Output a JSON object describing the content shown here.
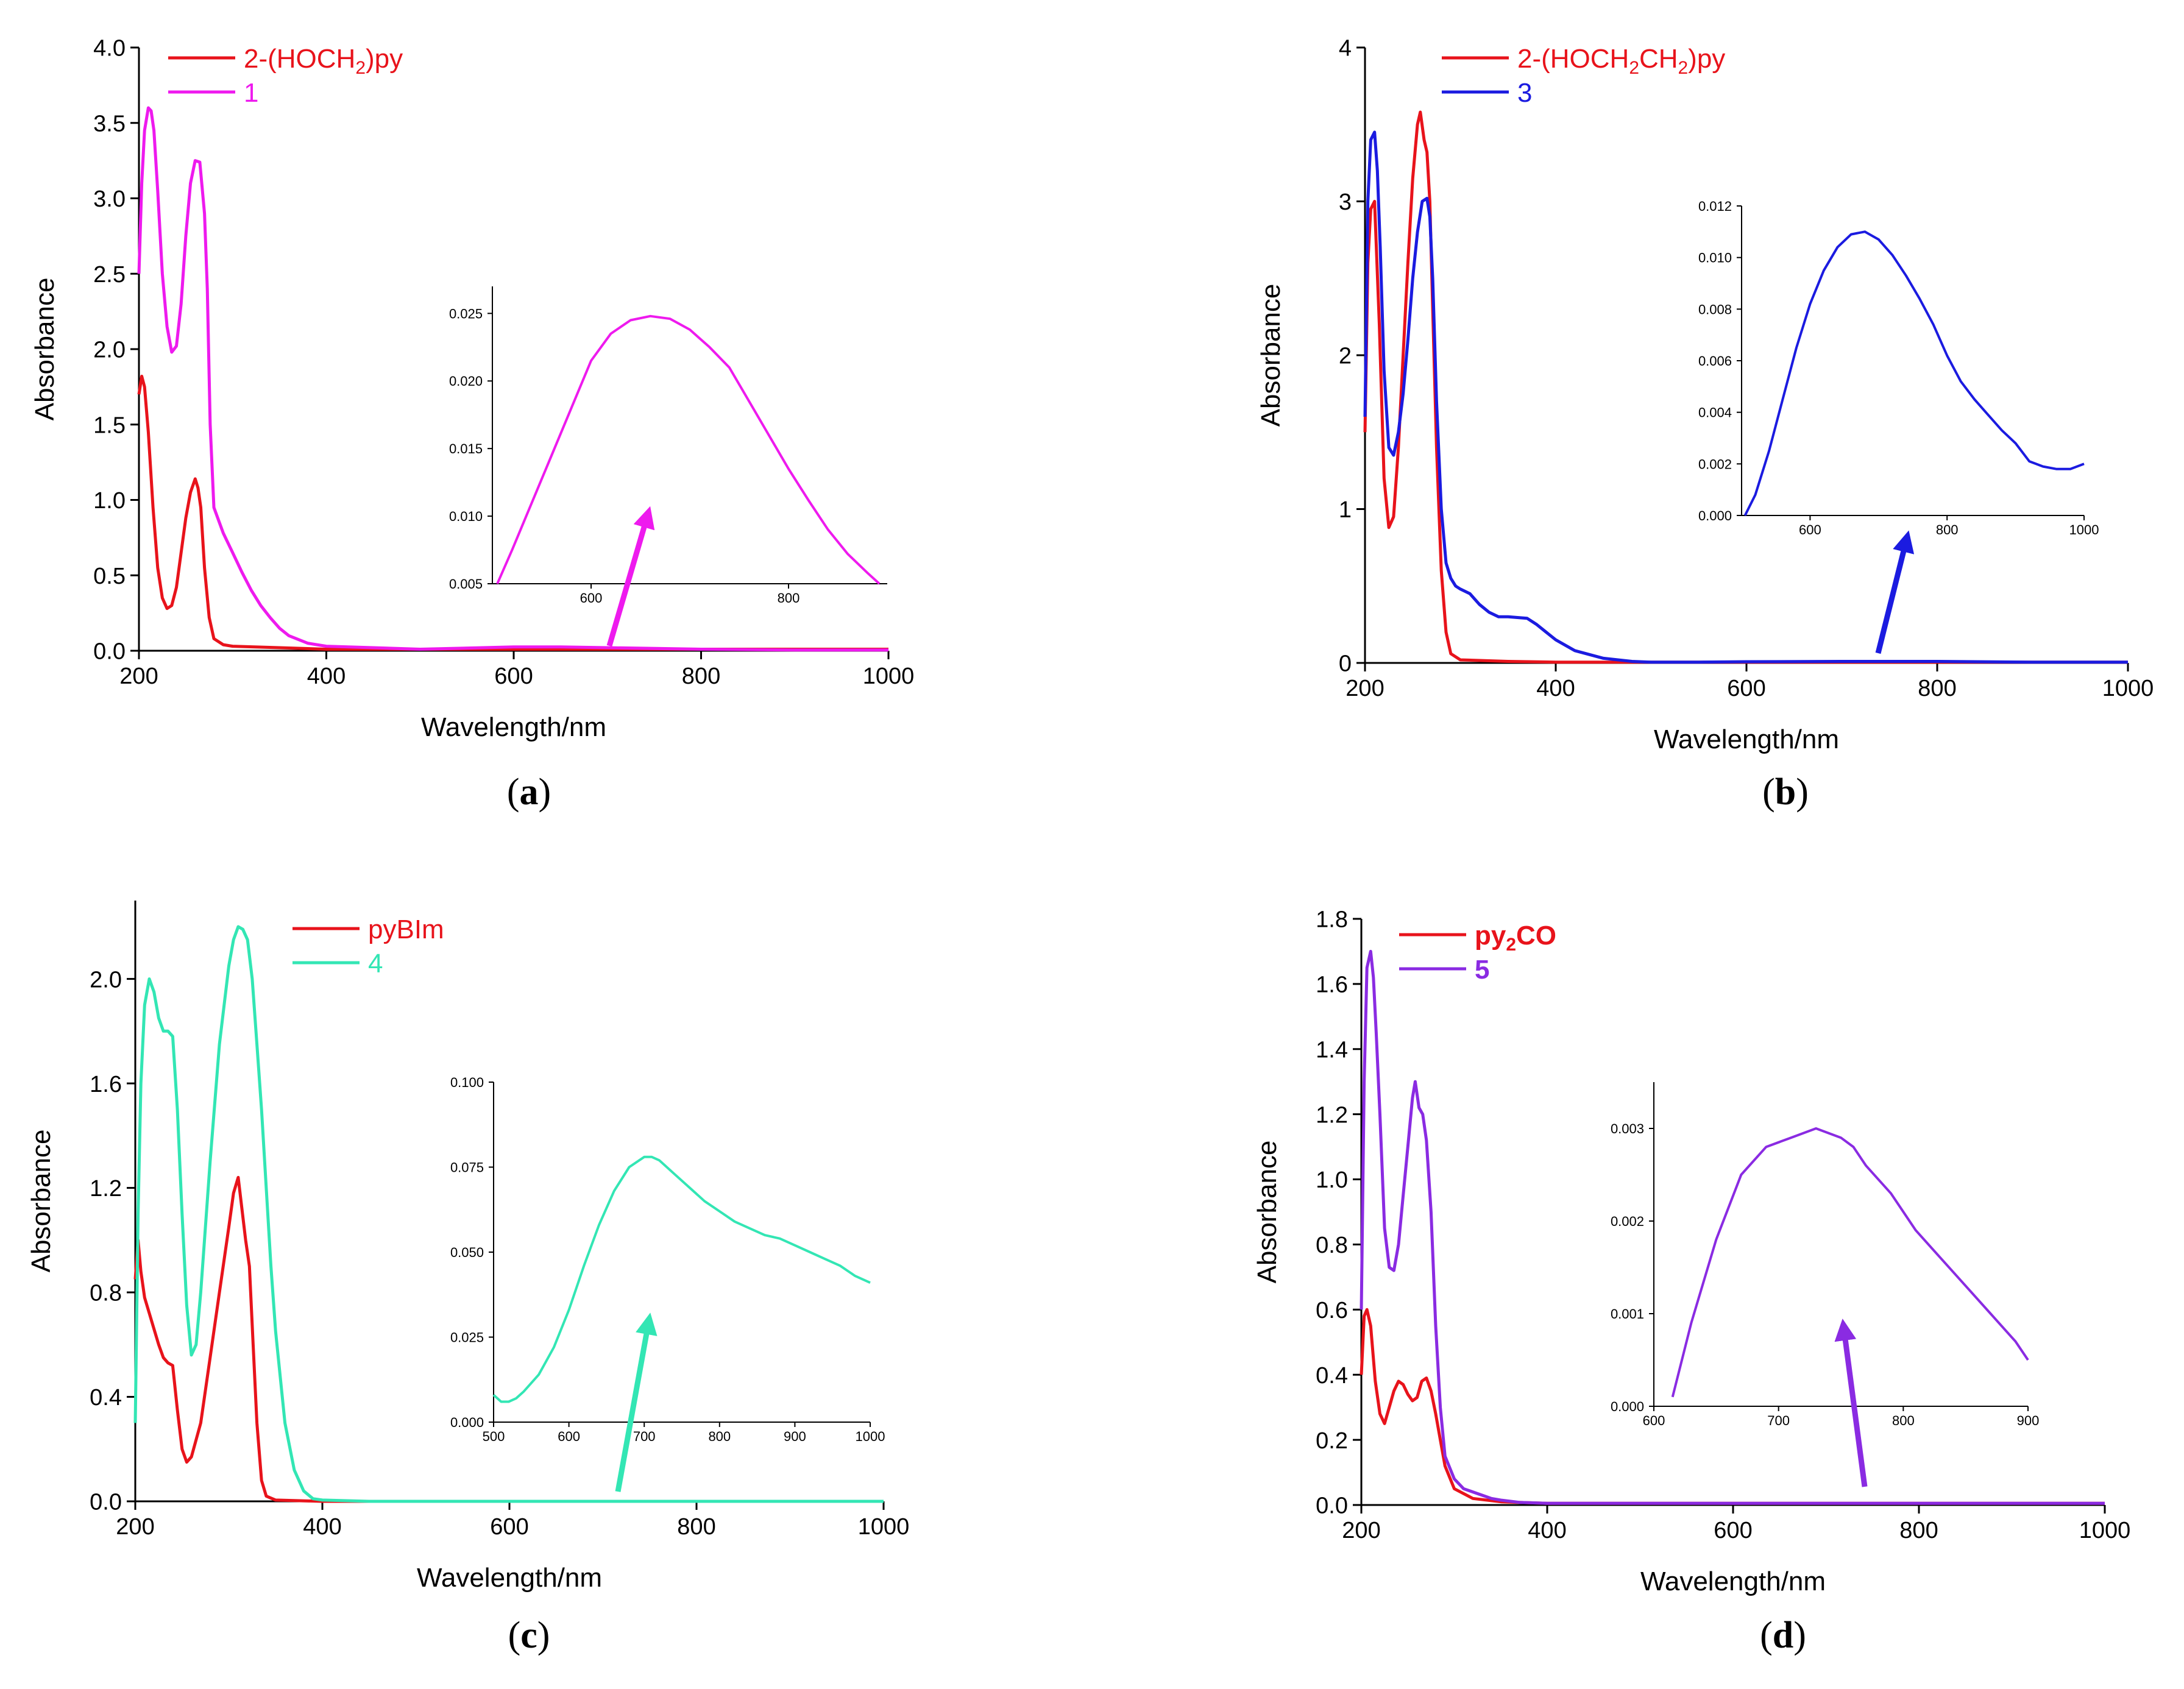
{
  "chart_data": [
    {
      "id": "a",
      "type": "line",
      "panel_label": "a",
      "xlabel": "Wavelength/nm",
      "ylabel": "Absorbance",
      "xlim": [
        200,
        1000
      ],
      "ylim": [
        0,
        4.0
      ],
      "xticks": [
        200,
        400,
        600,
        800,
        1000
      ],
      "yticks": [
        0.0,
        0.5,
        1.0,
        1.5,
        2.0,
        2.5,
        3.0,
        3.5,
        4.0
      ],
      "ytick_decimals": 1,
      "legend": [
        {
          "pre": "2-(HOCH",
          "sub": "2",
          "post": ")py",
          "color": "#e8131b",
          "bold": false
        },
        {
          "pre": "1",
          "sub": "",
          "post": "",
          "color": "#ee1aee",
          "bold": false
        }
      ],
      "series": [
        {
          "color": "#e8131b",
          "x": [
            200,
            203,
            206,
            210,
            215,
            220,
            225,
            230,
            235,
            240,
            245,
            250,
            255,
            260,
            263,
            266,
            270,
            275,
            280,
            290,
            300,
            350,
            400,
            500,
            600,
            700,
            800,
            1000
          ],
          "y": [
            1.7,
            1.82,
            1.75,
            1.45,
            0.95,
            0.55,
            0.35,
            0.28,
            0.3,
            0.42,
            0.65,
            0.88,
            1.05,
            1.14,
            1.08,
            0.95,
            0.55,
            0.22,
            0.08,
            0.04,
            0.03,
            0.02,
            0.01,
            0.01,
            0.01,
            0.01,
            0.01,
            0.01
          ]
        },
        {
          "color": "#ee1aee",
          "x": [
            200,
            203,
            206,
            210,
            213,
            216,
            220,
            225,
            230,
            235,
            240,
            245,
            250,
            255,
            260,
            265,
            270,
            273,
            276,
            280,
            290,
            300,
            310,
            320,
            330,
            340,
            350,
            360,
            380,
            400,
            450,
            500,
            600,
            650,
            700,
            800,
            900,
            1000
          ],
          "y": [
            2.5,
            3.1,
            3.45,
            3.6,
            3.58,
            3.45,
            3.05,
            2.5,
            2.15,
            1.98,
            2.02,
            2.3,
            2.75,
            3.1,
            3.25,
            3.24,
            2.9,
            2.4,
            1.5,
            0.95,
            0.78,
            0.65,
            0.52,
            0.4,
            0.3,
            0.22,
            0.15,
            0.1,
            0.05,
            0.03,
            0.02,
            0.01,
            0.025,
            0.025,
            0.02,
            0.01,
            0.005,
            0.005
          ]
        }
      ],
      "inset": {
        "xlim": [
          500,
          900
        ],
        "ylim": [
          0.005,
          0.027
        ],
        "xticks": [
          600,
          800
        ],
        "yticks": [
          0.005,
          0.01,
          0.015,
          0.02,
          0.025
        ],
        "ytick_decimals": 3,
        "color": "#ee1aee",
        "x": [
          505,
          520,
          540,
          560,
          580,
          600,
          620,
          640,
          660,
          680,
          700,
          720,
          740,
          760,
          780,
          800,
          820,
          840,
          860,
          880,
          892
        ],
        "y": [
          0.005,
          0.0075,
          0.011,
          0.0145,
          0.018,
          0.0215,
          0.0235,
          0.0245,
          0.0248,
          0.0246,
          0.0238,
          0.0225,
          0.021,
          0.0185,
          0.016,
          0.0135,
          0.0112,
          0.009,
          0.0072,
          0.0058,
          0.005
        ]
      }
    },
    {
      "id": "b",
      "type": "line",
      "panel_label": "b",
      "xlabel": "Wavelength/nm",
      "ylabel": "Absorbance",
      "xlim": [
        200,
        1000
      ],
      "ylim": [
        0,
        4
      ],
      "xticks": [
        200,
        400,
        600,
        800,
        1000
      ],
      "yticks": [
        0,
        1,
        2,
        3,
        4
      ],
      "ytick_decimals": 0,
      "legend": [
        {
          "pre": "2-(HOCH",
          "sub": "2",
          "post": "CH",
          "sub2": "2",
          "post2": ")py",
          "color": "#e8131b",
          "bold": false
        },
        {
          "pre": "3",
          "sub": "",
          "post": "",
          "color": "#1b1be0",
          "bold": false
        }
      ],
      "series": [
        {
          "color": "#e8131b",
          "x": [
            200,
            203,
            206,
            210,
            215,
            220,
            225,
            230,
            235,
            240,
            245,
            250,
            255,
            258,
            262,
            265,
            268,
            271,
            275,
            280,
            285,
            290,
            300,
            350,
            400,
            600,
            800,
            1000
          ],
          "y": [
            1.5,
            2.6,
            2.95,
            3.0,
            2.2,
            1.2,
            0.88,
            0.95,
            1.4,
            2.0,
            2.6,
            3.15,
            3.5,
            3.58,
            3.4,
            3.32,
            3.0,
            2.3,
            1.4,
            0.6,
            0.2,
            0.06,
            0.02,
            0.01,
            0.005,
            0.005,
            0.005,
            0.005
          ]
        },
        {
          "color": "#1b1be0",
          "x": [
            200,
            203,
            206,
            210,
            213,
            216,
            220,
            225,
            230,
            235,
            240,
            245,
            250,
            255,
            260,
            265,
            268,
            271,
            275,
            280,
            285,
            290,
            295,
            300,
            310,
            320,
            330,
            340,
            350,
            370,
            380,
            390,
            400,
            420,
            450,
            480,
            500,
            550,
            600,
            700,
            800,
            900,
            1000
          ],
          "y": [
            1.6,
            3.0,
            3.4,
            3.45,
            3.2,
            2.7,
            1.9,
            1.4,
            1.35,
            1.5,
            1.75,
            2.1,
            2.5,
            2.8,
            3.0,
            3.02,
            2.9,
            2.5,
            1.7,
            1.0,
            0.65,
            0.55,
            0.5,
            0.48,
            0.45,
            0.38,
            0.33,
            0.3,
            0.3,
            0.29,
            0.25,
            0.2,
            0.15,
            0.08,
            0.03,
            0.01,
            0.005,
            0.005,
            0.008,
            0.01,
            0.01,
            0.005,
            0.005
          ]
        }
      ],
      "inset": {
        "xlim": [
          500,
          1000
        ],
        "ylim": [
          0.0,
          0.012
        ],
        "xticks": [
          600,
          800,
          1000
        ],
        "yticks": [
          0.0,
          0.002,
          0.004,
          0.006,
          0.008,
          0.01,
          0.012
        ],
        "ytick_decimals": 3,
        "color": "#1b1be0",
        "x": [
          505,
          520,
          540,
          560,
          580,
          600,
          620,
          640,
          660,
          680,
          700,
          720,
          740,
          760,
          780,
          800,
          820,
          840,
          860,
          880,
          900,
          920,
          940,
          960,
          980,
          1000
        ],
        "y": [
          0.0,
          0.0008,
          0.0025,
          0.0045,
          0.0065,
          0.0082,
          0.0095,
          0.0104,
          0.0109,
          0.011,
          0.0107,
          0.0101,
          0.0093,
          0.0084,
          0.0074,
          0.0062,
          0.0052,
          0.0045,
          0.0039,
          0.0033,
          0.0028,
          0.0021,
          0.0019,
          0.0018,
          0.0018,
          0.002
        ]
      }
    },
    {
      "id": "c",
      "type": "line",
      "panel_label": "c",
      "xlabel": "Wavelength/nm",
      "ylabel": "Absorbance",
      "xlim": [
        200,
        1000
      ],
      "ylim": [
        0,
        2.3
      ],
      "xticks": [
        200,
        400,
        600,
        800,
        1000
      ],
      "yticks": [
        0.0,
        0.4,
        0.8,
        1.2,
        1.6,
        2.0
      ],
      "ytick_decimals": 1,
      "legend": [
        {
          "pre": "pyBIm",
          "sub": "",
          "post": "",
          "color": "#e8131b",
          "bold": false
        },
        {
          "pre": "4",
          "sub": "",
          "post": "",
          "color": "#33e6b4",
          "bold": false
        }
      ],
      "series": [
        {
          "color": "#e8131b",
          "x": [
            200,
            203,
            206,
            210,
            215,
            220,
            225,
            230,
            235,
            240,
            245,
            250,
            255,
            260,
            270,
            280,
            290,
            300,
            305,
            310,
            314,
            318,
            322,
            326,
            330,
            335,
            340,
            350,
            400,
            600,
            800,
            1000
          ],
          "y": [
            0.85,
            1.0,
            0.88,
            0.78,
            0.72,
            0.66,
            0.6,
            0.55,
            0.53,
            0.52,
            0.35,
            0.2,
            0.15,
            0.17,
            0.3,
            0.55,
            0.8,
            1.05,
            1.18,
            1.24,
            1.12,
            1.0,
            0.9,
            0.6,
            0.3,
            0.08,
            0.02,
            0.005,
            0.0,
            0.0,
            0.0,
            0.0
          ]
        },
        {
          "color": "#33e6b4",
          "x": [
            200,
            203,
            206,
            210,
            215,
            220,
            225,
            230,
            235,
            240,
            245,
            250,
            255,
            260,
            265,
            270,
            280,
            290,
            300,
            305,
            310,
            315,
            320,
            325,
            330,
            335,
            340,
            345,
            350,
            360,
            370,
            380,
            390,
            400,
            450,
            500,
            600,
            700,
            800,
            1000
          ],
          "y": [
            0.3,
            1.1,
            1.6,
            1.9,
            2.0,
            1.95,
            1.85,
            1.8,
            1.8,
            1.78,
            1.5,
            1.1,
            0.75,
            0.56,
            0.6,
            0.8,
            1.3,
            1.75,
            2.05,
            2.15,
            2.2,
            2.19,
            2.15,
            2.0,
            1.75,
            1.5,
            1.2,
            0.9,
            0.65,
            0.3,
            0.12,
            0.04,
            0.01,
            0.005,
            0.0,
            0.0,
            0.0,
            0.0,
            0.0,
            0.0
          ]
        }
      ],
      "inset": {
        "xlim": [
          500,
          1000
        ],
        "ylim": [
          0.0,
          0.1
        ],
        "xticks": [
          500,
          600,
          700,
          800,
          900,
          1000
        ],
        "yticks": [
          0.0,
          0.025,
          0.05,
          0.075,
          0.1
        ],
        "ytick_decimals": 3,
        "color": "#33e6b4",
        "x": [
          500,
          510,
          520,
          530,
          540,
          560,
          580,
          600,
          620,
          640,
          660,
          680,
          700,
          710,
          720,
          740,
          760,
          780,
          800,
          820,
          840,
          860,
          880,
          900,
          920,
          940,
          960,
          980,
          1000
        ],
        "y": [
          0.008,
          0.006,
          0.006,
          0.007,
          0.009,
          0.014,
          0.022,
          0.033,
          0.046,
          0.058,
          0.068,
          0.075,
          0.078,
          0.078,
          0.077,
          0.073,
          0.069,
          0.065,
          0.062,
          0.059,
          0.057,
          0.055,
          0.054,
          0.052,
          0.05,
          0.048,
          0.046,
          0.043,
          0.041
        ]
      }
    },
    {
      "id": "d",
      "type": "line",
      "panel_label": "d",
      "xlabel": "Wavelength/nm",
      "ylabel": "Absorbance",
      "xlim": [
        200,
        1000
      ],
      "ylim": [
        0,
        1.8
      ],
      "xticks": [
        200,
        400,
        600,
        800,
        1000
      ],
      "yticks": [
        0.0,
        0.2,
        0.4,
        0.6,
        0.8,
        1.0,
        1.2,
        1.4,
        1.6,
        1.8
      ],
      "ytick_decimals": 1,
      "legend": [
        {
          "pre": "py",
          "sub": "2",
          "post": "CO",
          "color": "#e8131b",
          "bold": true
        },
        {
          "pre": "5",
          "sub": "",
          "post": "",
          "color": "#8a2be2",
          "bold": true
        }
      ],
      "series": [
        {
          "color": "#e8131b",
          "x": [
            200,
            203,
            206,
            210,
            215,
            220,
            225,
            230,
            235,
            240,
            245,
            250,
            255,
            260,
            265,
            270,
            275,
            280,
            285,
            290,
            300,
            320,
            350,
            400,
            600,
            800,
            1000
          ],
          "y": [
            0.4,
            0.58,
            0.6,
            0.55,
            0.38,
            0.28,
            0.25,
            0.3,
            0.35,
            0.38,
            0.37,
            0.34,
            0.32,
            0.33,
            0.38,
            0.39,
            0.35,
            0.28,
            0.2,
            0.12,
            0.05,
            0.02,
            0.01,
            0.005,
            0.005,
            0.005,
            0.005
          ]
        },
        {
          "color": "#8a2be2",
          "x": [
            200,
            203,
            206,
            210,
            213,
            216,
            220,
            225,
            230,
            235,
            240,
            245,
            250,
            255,
            258,
            262,
            266,
            270,
            275,
            280,
            285,
            290,
            300,
            310,
            320,
            330,
            340,
            350,
            370,
            400,
            600,
            800,
            1000
          ],
          "y": [
            0.6,
            1.3,
            1.65,
            1.7,
            1.62,
            1.45,
            1.2,
            0.85,
            0.73,
            0.72,
            0.8,
            0.95,
            1.1,
            1.25,
            1.3,
            1.22,
            1.2,
            1.12,
            0.9,
            0.55,
            0.3,
            0.15,
            0.08,
            0.05,
            0.04,
            0.03,
            0.02,
            0.015,
            0.008,
            0.005,
            0.005,
            0.005,
            0.005
          ]
        }
      ],
      "inset": {
        "xlim": [
          600,
          900
        ],
        "ylim": [
          0.0,
          0.0035
        ],
        "xticks": [
          600,
          700,
          800,
          900
        ],
        "yticks": [
          0.0,
          0.001,
          0.002,
          0.003
        ],
        "ytick_decimals": 3,
        "color": "#8a2be2",
        "x": [
          615,
          630,
          650,
          670,
          690,
          710,
          730,
          750,
          760,
          770,
          790,
          810,
          830,
          850,
          870,
          890,
          900
        ],
        "y": [
          0.0001,
          0.0009,
          0.0018,
          0.0025,
          0.0028,
          0.0029,
          0.003,
          0.0029,
          0.0028,
          0.0026,
          0.0023,
          0.0019,
          0.0016,
          0.0013,
          0.001,
          0.0007,
          0.0005
        ]
      }
    }
  ]
}
